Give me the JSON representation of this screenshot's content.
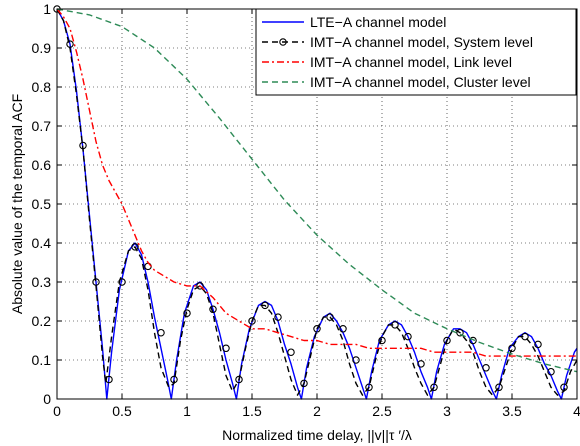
{
  "chart_data": {
    "type": "line",
    "title": "",
    "xlabel": "Normalized time delay, ||v||τ ′/λ",
    "ylabel": "Absolute value of the temporal ACF",
    "xlim": [
      0,
      4
    ],
    "ylim": [
      0,
      1
    ],
    "grid": true,
    "legend_position": "top-right",
    "x_ticks": [
      0,
      0.5,
      1,
      1.5,
      2,
      2.5,
      3,
      3.5,
      4
    ],
    "x_tick_labels": [
      "0",
      "0.5",
      "1",
      "1.5",
      "2",
      "2.5",
      "3",
      "3.5",
      "4"
    ],
    "y_ticks": [
      0,
      0.1,
      0.2,
      0.3,
      0.4,
      0.5,
      0.6,
      0.7,
      0.8,
      0.9,
      1
    ],
    "y_tick_labels": [
      "0",
      "0.1",
      "0.2",
      "0.3",
      "0.4",
      "0.5",
      "0.6",
      "0.7",
      "0.8",
      "0.9",
      "1"
    ],
    "series": [
      {
        "name": "LTE−A channel model",
        "color": "#0000ff",
        "style": "solid",
        "x": [
          0,
          0.05,
          0.1,
          0.15,
          0.2,
          0.25,
          0.3,
          0.35,
          0.383,
          0.42,
          0.48,
          0.55,
          0.6,
          0.65,
          0.7,
          0.75,
          0.8,
          0.85,
          0.879,
          0.92,
          0.98,
          1.05,
          1.1,
          1.15,
          1.2,
          1.25,
          1.3,
          1.35,
          1.38,
          1.42,
          1.48,
          1.55,
          1.6,
          1.65,
          1.7,
          1.75,
          1.8,
          1.85,
          1.88,
          1.92,
          1.98,
          2.05,
          2.1,
          2.15,
          2.2,
          2.25,
          2.3,
          2.35,
          2.38,
          2.42,
          2.48,
          2.55,
          2.6,
          2.65,
          2.7,
          2.75,
          2.8,
          2.85,
          2.88,
          2.92,
          2.98,
          3.05,
          3.1,
          3.15,
          3.2,
          3.25,
          3.3,
          3.35,
          3.38,
          3.42,
          3.48,
          3.55,
          3.6,
          3.65,
          3.7,
          3.75,
          3.8,
          3.85,
          3.88,
          3.92,
          3.98,
          4.0
        ],
        "y": [
          1.0,
          0.97,
          0.91,
          0.79,
          0.64,
          0.47,
          0.3,
          0.13,
          0.0,
          0.12,
          0.28,
          0.38,
          0.4,
          0.37,
          0.3,
          0.21,
          0.13,
          0.05,
          0.0,
          0.1,
          0.22,
          0.29,
          0.3,
          0.28,
          0.23,
          0.17,
          0.1,
          0.04,
          0.0,
          0.09,
          0.18,
          0.24,
          0.25,
          0.24,
          0.2,
          0.14,
          0.09,
          0.03,
          0.0,
          0.08,
          0.16,
          0.21,
          0.22,
          0.2,
          0.17,
          0.13,
          0.08,
          0.03,
          0.0,
          0.07,
          0.15,
          0.19,
          0.2,
          0.19,
          0.16,
          0.12,
          0.07,
          0.03,
          0.0,
          0.07,
          0.14,
          0.18,
          0.18,
          0.17,
          0.14,
          0.1,
          0.06,
          0.02,
          0.0,
          0.06,
          0.13,
          0.16,
          0.17,
          0.16,
          0.13,
          0.09,
          0.06,
          0.02,
          0.0,
          0.06,
          0.12,
          0.13
        ]
      },
      {
        "name": "IMT−A channel model, System level",
        "color": "#000000",
        "style": "dashed",
        "marker": "circle",
        "x": [
          0,
          0.05,
          0.1,
          0.15,
          0.2,
          0.25,
          0.3,
          0.35,
          0.375,
          0.42,
          0.48,
          0.55,
          0.6,
          0.65,
          0.7,
          0.75,
          0.8,
          0.86,
          0.9,
          0.95,
          1.0,
          1.05,
          1.1,
          1.15,
          1.2,
          1.25,
          1.3,
          1.35,
          1.4,
          1.45,
          1.5,
          1.55,
          1.6,
          1.65,
          1.7,
          1.75,
          1.8,
          1.85,
          1.9,
          1.95,
          2.0,
          2.05,
          2.1,
          2.15,
          2.2,
          2.25,
          2.3,
          2.35,
          2.4,
          2.45,
          2.5,
          2.55,
          2.6,
          2.65,
          2.7,
          2.75,
          2.8,
          2.85,
          2.9,
          2.95,
          3.0,
          3.05,
          3.1,
          3.15,
          3.2,
          3.25,
          3.3,
          3.35,
          3.4,
          3.45,
          3.5,
          3.55,
          3.6,
          3.65,
          3.7,
          3.75,
          3.8,
          3.85,
          3.9,
          3.95,
          4.0
        ],
        "y": [
          1.0,
          0.97,
          0.9,
          0.78,
          0.64,
          0.46,
          0.29,
          0.11,
          0.04,
          0.16,
          0.3,
          0.38,
          0.39,
          0.36,
          0.28,
          0.17,
          0.08,
          0.03,
          0.04,
          0.15,
          0.23,
          0.28,
          0.29,
          0.27,
          0.22,
          0.14,
          0.06,
          0.02,
          0.05,
          0.13,
          0.2,
          0.24,
          0.24,
          0.22,
          0.17,
          0.11,
          0.05,
          0.01,
          0.04,
          0.11,
          0.18,
          0.21,
          0.21,
          0.19,
          0.15,
          0.09,
          0.04,
          0.01,
          0.03,
          0.1,
          0.16,
          0.19,
          0.19,
          0.17,
          0.13,
          0.08,
          0.04,
          0.01,
          0.03,
          0.09,
          0.15,
          0.18,
          0.17,
          0.15,
          0.12,
          0.07,
          0.03,
          0.01,
          0.03,
          0.08,
          0.13,
          0.16,
          0.16,
          0.14,
          0.11,
          0.07,
          0.03,
          0.01,
          0.02,
          0.07,
          0.1
        ],
        "marker_x": [
          0,
          0.1,
          0.2,
          0.3,
          0.4,
          0.5,
          0.6,
          0.7,
          0.8,
          0.9,
          1.0,
          1.1,
          1.2,
          1.3,
          1.4,
          1.5,
          1.6,
          1.7,
          1.8,
          1.9,
          2.0,
          2.1,
          2.2,
          2.3,
          2.4,
          2.5,
          2.6,
          2.7,
          2.8,
          2.9,
          3.0,
          3.1,
          3.2,
          3.3,
          3.4,
          3.5,
          3.6,
          3.7,
          3.8,
          3.9
        ],
        "marker_y": [
          1.0,
          0.91,
          0.65,
          0.3,
          0.05,
          0.3,
          0.39,
          0.34,
          0.17,
          0.05,
          0.22,
          0.29,
          0.23,
          0.13,
          0.05,
          0.2,
          0.24,
          0.21,
          0.12,
          0.04,
          0.18,
          0.21,
          0.18,
          0.1,
          0.03,
          0.15,
          0.19,
          0.16,
          0.09,
          0.03,
          0.15,
          0.17,
          0.15,
          0.08,
          0.03,
          0.13,
          0.16,
          0.14,
          0.07,
          0.03
        ]
      },
      {
        "name": "IMT−A channel model, Link level",
        "color": "#ff0000",
        "style": "dashdot",
        "x": [
          0,
          0.05,
          0.1,
          0.15,
          0.2,
          0.25,
          0.3,
          0.35,
          0.4,
          0.45,
          0.5,
          0.55,
          0.6,
          0.65,
          0.7,
          0.75,
          0.8,
          0.9,
          1.0,
          1.1,
          1.2,
          1.3,
          1.4,
          1.5,
          1.6,
          1.7,
          1.8,
          1.9,
          2.0,
          2.1,
          2.2,
          2.3,
          2.4,
          2.5,
          2.6,
          2.7,
          2.8,
          2.9,
          3.0,
          3.1,
          3.2,
          3.3,
          3.4,
          3.5,
          3.6,
          3.7,
          3.8,
          3.9,
          4.0
        ],
        "y": [
          1.0,
          0.98,
          0.95,
          0.89,
          0.82,
          0.74,
          0.66,
          0.6,
          0.56,
          0.53,
          0.5,
          0.46,
          0.42,
          0.38,
          0.35,
          0.33,
          0.32,
          0.3,
          0.29,
          0.29,
          0.26,
          0.22,
          0.2,
          0.18,
          0.18,
          0.17,
          0.16,
          0.15,
          0.15,
          0.14,
          0.14,
          0.14,
          0.13,
          0.13,
          0.13,
          0.13,
          0.13,
          0.12,
          0.12,
          0.12,
          0.12,
          0.11,
          0.11,
          0.11,
          0.11,
          0.11,
          0.11,
          0.11,
          0.11
        ]
      },
      {
        "name": "IMT−A channel model, Cluster level",
        "color": "#2e8b57",
        "style": "dashed",
        "x": [
          0,
          0.25,
          0.5,
          0.75,
          1.0,
          1.25,
          1.5,
          1.75,
          2.0,
          2.25,
          2.5,
          2.75,
          3.0,
          3.25,
          3.5,
          3.75,
          4.0
        ],
        "y": [
          1.0,
          0.985,
          0.955,
          0.9,
          0.82,
          0.72,
          0.615,
          0.51,
          0.42,
          0.345,
          0.28,
          0.22,
          0.18,
          0.145,
          0.115,
          0.09,
          0.07
        ]
      }
    ]
  }
}
